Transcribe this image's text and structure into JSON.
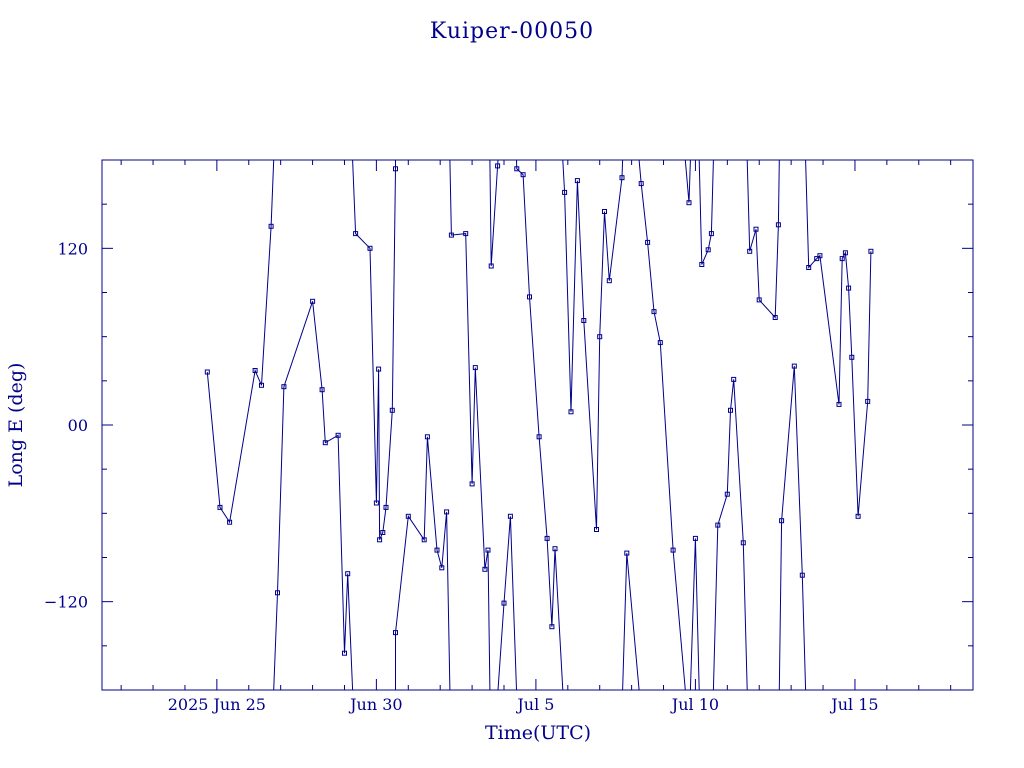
{
  "chart_data": {
    "type": "line",
    "title": "Kuiper-00050",
    "xlabel": "Time(UTC)",
    "ylabel": "Long E (deg)",
    "x_unit": "days",
    "x_ticks": [
      {
        "day": 25,
        "label": "2025 Jun 25"
      },
      {
        "day": 30,
        "label": "Jun 30"
      },
      {
        "day": 35,
        "label": "Jul  5"
      },
      {
        "day": 40,
        "label": "Jul 10"
      },
      {
        "day": 45,
        "label": "Jul 15"
      }
    ],
    "xlim": [
      21.4,
      48.7
    ],
    "y_ticks": [
      {
        "value": -120,
        "label": "−120"
      },
      {
        "value": 0,
        "label": "00"
      },
      {
        "value": 120,
        "label": "120"
      }
    ],
    "ylim": [
      -180,
      180
    ],
    "grid": false,
    "colors": {
      "line": "#00008b",
      "text": "#00008b",
      "axes": "#00008b"
    },
    "series": [
      {
        "points": [
          [
            24.7,
            36
          ],
          [
            25.1,
            -56
          ],
          [
            25.4,
            -66
          ],
          [
            26.2,
            37
          ],
          [
            26.4,
            27
          ],
          [
            26.7,
            135
          ],
          [
            26.9,
            -114
          ],
          [
            27.1,
            26
          ],
          [
            28.0,
            84
          ],
          [
            28.3,
            24
          ],
          [
            28.4,
            -12
          ],
          [
            28.8,
            -7
          ],
          [
            29.0,
            -155
          ],
          [
            29.1,
            -101
          ],
          [
            29.35,
            130
          ],
          [
            29.8,
            120
          ],
          [
            30.0,
            -53
          ],
          [
            30.07,
            38
          ],
          [
            30.1,
            -78
          ],
          [
            30.2,
            -73
          ],
          [
            30.3,
            -56
          ],
          [
            30.5,
            10
          ],
          [
            30.6,
            174
          ],
          [
            30.6,
            -141
          ],
          [
            31.0,
            -62
          ],
          [
            31.5,
            -78
          ],
          [
            31.6,
            -8
          ],
          [
            31.9,
            -85
          ],
          [
            32.05,
            -97
          ],
          [
            32.2,
            -59
          ],
          [
            32.35,
            129
          ],
          [
            32.8,
            130
          ],
          [
            33.0,
            -40
          ],
          [
            33.1,
            39
          ],
          [
            33.4,
            -98
          ],
          [
            33.5,
            -85
          ],
          [
            33.6,
            108
          ],
          [
            33.8,
            176
          ],
          [
            34.0,
            -121
          ],
          [
            34.2,
            -62
          ],
          [
            34.4,
            174
          ],
          [
            34.6,
            170
          ],
          [
            34.8,
            87
          ],
          [
            35.1,
            -8
          ],
          [
            35.35,
            -77
          ],
          [
            35.5,
            -137
          ],
          [
            35.6,
            -84
          ],
          [
            35.9,
            158
          ],
          [
            36.1,
            9
          ],
          [
            36.3,
            166
          ],
          [
            36.5,
            71
          ],
          [
            36.9,
            -71
          ],
          [
            37.0,
            60
          ],
          [
            37.15,
            145
          ],
          [
            37.3,
            98
          ],
          [
            37.7,
            168
          ],
          [
            37.85,
            -87
          ],
          [
            38.3,
            164
          ],
          [
            38.5,
            124
          ],
          [
            38.7,
            77
          ],
          [
            38.9,
            56
          ],
          [
            39.3,
            -85
          ],
          [
            39.8,
            151
          ],
          [
            40.0,
            -77
          ],
          [
            40.2,
            109
          ],
          [
            40.4,
            119
          ],
          [
            40.5,
            130
          ],
          [
            40.7,
            -68
          ],
          [
            41.0,
            -47
          ],
          [
            41.1,
            10
          ],
          [
            41.2,
            31
          ],
          [
            41.5,
            -80
          ],
          [
            41.7,
            118
          ],
          [
            41.9,
            133
          ],
          [
            42.0,
            85
          ],
          [
            42.5,
            73
          ],
          [
            42.6,
            136
          ],
          [
            42.7,
            -65
          ],
          [
            43.1,
            40
          ],
          [
            43.35,
            -102
          ],
          [
            43.55,
            107
          ],
          [
            43.8,
            113
          ],
          [
            43.9,
            115
          ],
          [
            44.5,
            14
          ],
          [
            44.6,
            113
          ],
          [
            44.7,
            117
          ],
          [
            44.8,
            93
          ],
          [
            44.9,
            46
          ],
          [
            45.1,
            -62
          ],
          [
            45.4,
            16
          ],
          [
            45.5,
            118
          ]
        ]
      }
    ]
  }
}
